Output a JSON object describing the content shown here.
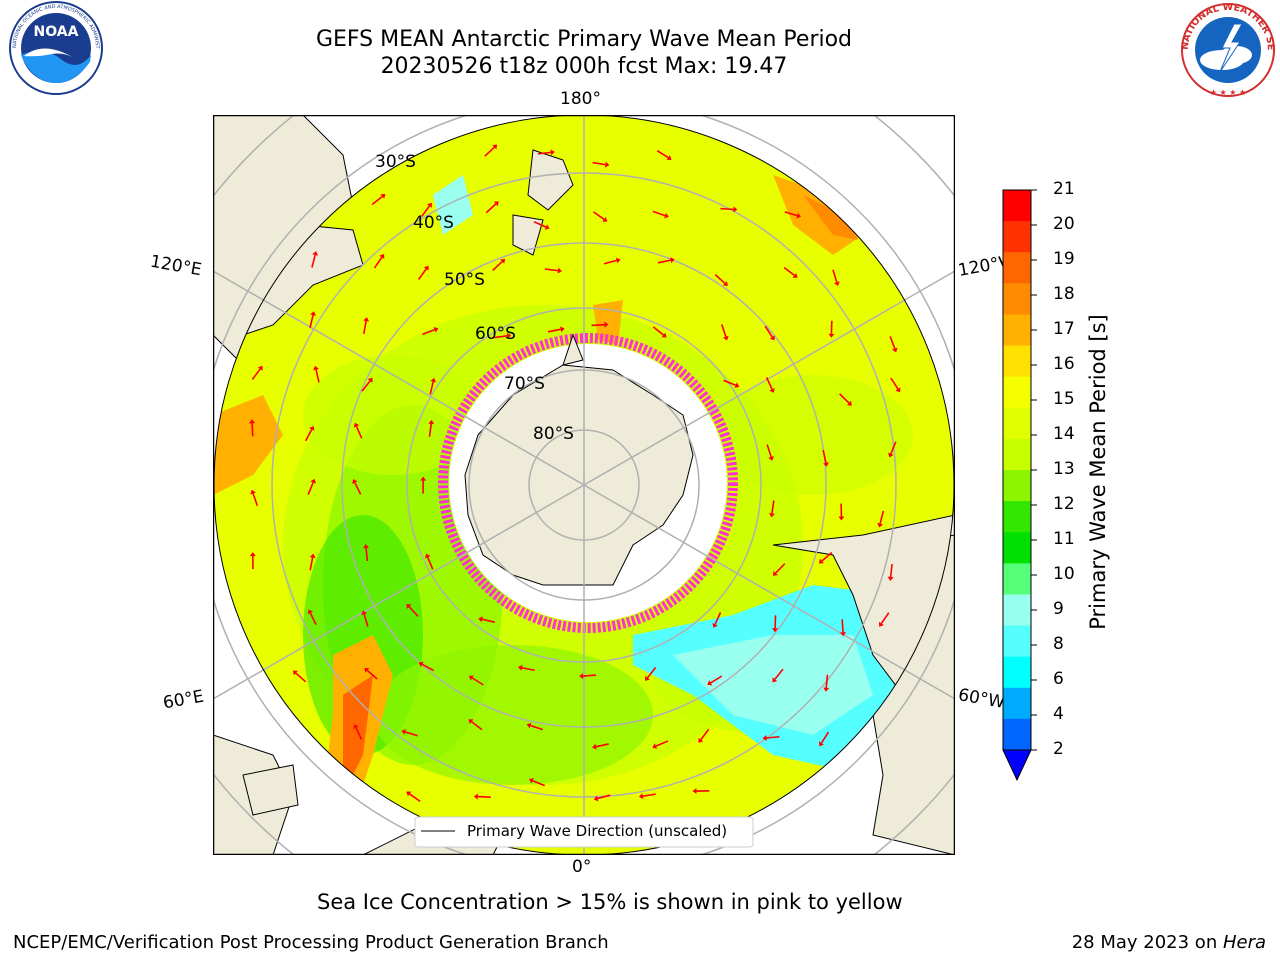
{
  "title": {
    "line1": "GEFS MEAN Antarctic Primary Wave Mean Period",
    "line2": "20230526 t18z 000h fcst   Max: 19.47"
  },
  "logos": {
    "left": "NOAA",
    "left_ring": "NATIONAL OCEANIC AND ATMOSPHERIC ADMINISTRATION · U.S. DEPARTMENT OF COMMERCE",
    "right_ring": "NATIONAL WEATHER SERVICE"
  },
  "map": {
    "projection": "south-polar-stereographic",
    "longitude_labels": {
      "top": "180°",
      "left": "120°E",
      "right": "120°W",
      "lower_left": "60°E",
      "lower_right": "60°W",
      "bottom": "0°"
    },
    "latitude_labels": [
      "30°S",
      "40°S",
      "50°S",
      "60°S",
      "70°S",
      "80°S"
    ],
    "legend": "Primary Wave Direction (unscaled)",
    "colors": {
      "land": "#efebd9",
      "ice": "#ff33cc",
      "arrow": "#ff0000",
      "grid": "#b0b0b0"
    }
  },
  "colorbar": {
    "label": "Primary Wave Mean Period [s]",
    "ticks": [
      "21",
      "20",
      "19",
      "18",
      "17",
      "16",
      "15",
      "14",
      "13",
      "12",
      "11",
      "10",
      "9",
      "8",
      "6",
      "4",
      "2"
    ],
    "colors": [
      "#ff0000",
      "#ff3300",
      "#ff6600",
      "#ff8c00",
      "#ffb000",
      "#ffe000",
      "#f5ff00",
      "#e0ff00",
      "#c8ff00",
      "#8ef500",
      "#33e600",
      "#00e000",
      "#55ff77",
      "#99ffee",
      "#55ffff",
      "#00ffff",
      "#00aaff",
      "#0066ff"
    ],
    "extend_color": "#0000ff"
  },
  "footer": {
    "sea_ice_note": "Sea Ice Concentration > 15% is shown in pink to yellow",
    "credit": "NCEP/EMC/Verification Post Processing Product Generation Branch",
    "date": "28 May 2023 on ",
    "host": "Hera"
  }
}
